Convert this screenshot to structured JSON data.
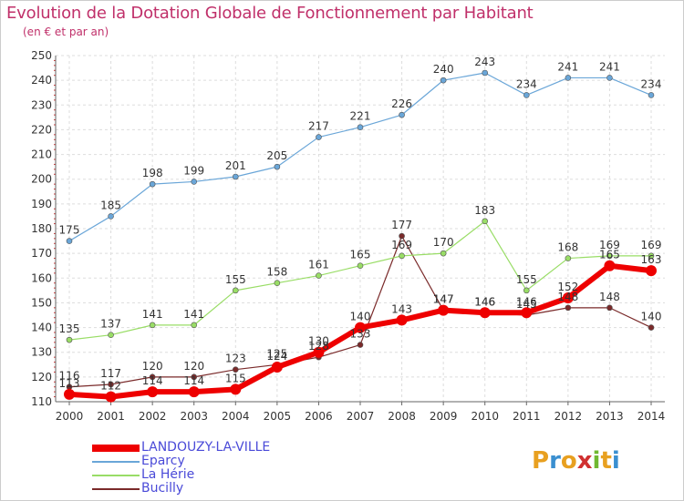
{
  "title": "Evolution de la Dotation Globale de Fonctionnement par Habitant",
  "subtitle": "(en € et par an)",
  "logo": {
    "text": "Proxiti",
    "colors": [
      "#e8a020",
      "#3a8fd0",
      "#e8a020",
      "#d03030",
      "#70b830",
      "#e8a020",
      "#3a8fd0"
    ]
  },
  "chart_data": {
    "type": "line",
    "x": [
      "2000",
      "2001",
      "2002",
      "2003",
      "2004",
      "2005",
      "2006",
      "2007",
      "2008",
      "2009",
      "2010",
      "2011",
      "2012",
      "2013",
      "2014"
    ],
    "ylim": [
      110,
      250
    ],
    "yticks": [
      110,
      120,
      130,
      140,
      150,
      160,
      170,
      180,
      190,
      200,
      210,
      220,
      230,
      240,
      250
    ],
    "grid": true,
    "legend_position": "bottom-left",
    "series": [
      {
        "name": "LANDOUZY-LA-VILLE",
        "color": "#ee0000",
        "values": [
          113,
          112,
          114,
          114,
          115,
          124,
          130,
          140,
          143,
          147,
          146,
          146,
          152,
          165,
          163
        ]
      },
      {
        "name": "Eparcy",
        "color": "#6aa6d8",
        "values": [
          175,
          185,
          198,
          199,
          201,
          205,
          217,
          221,
          226,
          240,
          243,
          234,
          241,
          241,
          234
        ]
      },
      {
        "name": "La Hérie",
        "color": "#99dd66",
        "values": [
          135,
          137,
          141,
          141,
          155,
          158,
          161,
          165,
          169,
          170,
          183,
          155,
          168,
          169,
          169
        ]
      },
      {
        "name": "Bucilly",
        "color": "#7a2a2a",
        "values": [
          116,
          117,
          120,
          120,
          123,
          125,
          128,
          133,
          177,
          147,
          146,
          145,
          148,
          148,
          140
        ]
      }
    ]
  }
}
